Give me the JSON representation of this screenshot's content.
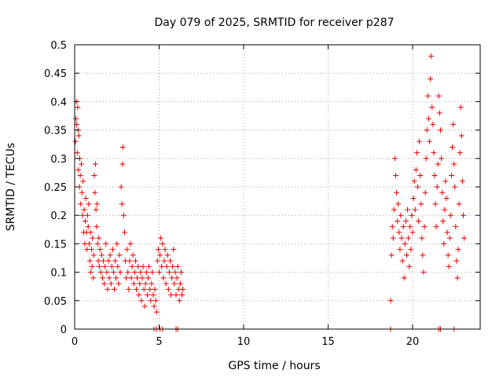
{
  "chart_data": {
    "type": "scatter",
    "title": "Day 079 of 2025, SRMTID for receiver p287",
    "xlabel": "GPS time / hours",
    "ylabel": "SRMTID / TECUs",
    "xlim": [
      0,
      24
    ],
    "ylim": [
      0,
      0.5
    ],
    "xticks": [
      0,
      5,
      10,
      15,
      20
    ],
    "xtick_labels": [
      "0",
      "5",
      "10",
      "15",
      "20"
    ],
    "yticks": [
      0,
      0.05,
      0.1,
      0.15,
      0.2,
      0.25,
      0.3,
      0.35,
      0.4,
      0.45,
      0.5
    ],
    "ytick_labels": [
      "0",
      "0.05",
      "0.1",
      "0.15",
      "0.2",
      "0.25",
      "0.3",
      "0.35",
      "0.4",
      "0.45",
      "0.5"
    ],
    "grid": true,
    "marker": "+",
    "color": "#e60000",
    "series": [
      {
        "name": "SRMTID",
        "points": [
          [
            0.05,
            0.33
          ],
          [
            0.08,
            0.37
          ],
          [
            0.1,
            0.4
          ],
          [
            0.12,
            0.36
          ],
          [
            0.15,
            0.31
          ],
          [
            0.18,
            0.39
          ],
          [
            0.2,
            0.35
          ],
          [
            0.22,
            0.28
          ],
          [
            0.25,
            0.34
          ],
          [
            0.28,
            0.25
          ],
          [
            0.3,
            0.3
          ],
          [
            0.33,
            0.27
          ],
          [
            0.36,
            0.22
          ],
          [
            0.4,
            0.29
          ],
          [
            0.43,
            0.24
          ],
          [
            0.46,
            0.2
          ],
          [
            0.5,
            0.26
          ],
          [
            0.53,
            0.17
          ],
          [
            0.56,
            0.21
          ],
          [
            0.6,
            0.15
          ],
          [
            0.63,
            0.19
          ],
          [
            0.66,
            0.23
          ],
          [
            0.7,
            0.17
          ],
          [
            0.73,
            0.14
          ],
          [
            0.76,
            0.2
          ],
          [
            0.8,
            0.18
          ],
          [
            0.83,
            0.22
          ],
          [
            0.86,
            0.15
          ],
          [
            0.9,
            0.12
          ],
          [
            0.93,
            0.17
          ],
          [
            0.96,
            0.1
          ],
          [
            1.0,
            0.14
          ],
          [
            1.03,
            0.11
          ],
          [
            1.06,
            0.16
          ],
          [
            1.1,
            0.09
          ],
          [
            1.13,
            0.13
          ],
          [
            1.16,
            0.27
          ],
          [
            1.2,
            0.24
          ],
          [
            1.23,
            0.29
          ],
          [
            1.26,
            0.21
          ],
          [
            1.3,
            0.18
          ],
          [
            1.33,
            0.22
          ],
          [
            1.36,
            0.15
          ],
          [
            1.4,
            0.12
          ],
          [
            1.43,
            0.16
          ],
          [
            1.46,
            0.11
          ],
          [
            1.5,
            0.14
          ],
          [
            1.55,
            0.1
          ],
          [
            1.6,
            0.13
          ],
          [
            1.65,
            0.09
          ],
          [
            1.7,
            0.12
          ],
          [
            1.75,
            0.08
          ],
          [
            1.8,
            0.11
          ],
          [
            1.85,
            0.15
          ],
          [
            1.9,
            0.1
          ],
          [
            1.95,
            0.07
          ],
          [
            2.0,
            0.12
          ],
          [
            2.05,
            0.09
          ],
          [
            2.1,
            0.13
          ],
          [
            2.15,
            0.08
          ],
          [
            2.2,
            0.11
          ],
          [
            2.25,
            0.14
          ],
          [
            2.3,
            0.1
          ],
          [
            2.35,
            0.07
          ],
          [
            2.4,
            0.12
          ],
          [
            2.45,
            0.09
          ],
          [
            2.5,
            0.15
          ],
          [
            2.55,
            0.11
          ],
          [
            2.6,
            0.08
          ],
          [
            2.65,
            0.13
          ],
          [
            2.7,
            0.1
          ],
          [
            2.75,
            0.25
          ],
          [
            2.8,
            0.22
          ],
          [
            2.83,
            0.29
          ],
          [
            2.85,
            0.32
          ],
          [
            2.9,
            0.2
          ],
          [
            2.95,
            0.17
          ],
          [
            3.0,
            0.12
          ],
          [
            3.05,
            0.09
          ],
          [
            3.1,
            0.14
          ],
          [
            3.15,
            0.1
          ],
          [
            3.2,
            0.07
          ],
          [
            3.25,
            0.12
          ],
          [
            3.3,
            0.15
          ],
          [
            3.35,
            0.09
          ],
          [
            3.4,
            0.11
          ],
          [
            3.45,
            0.13
          ],
          [
            3.5,
            0.08
          ],
          [
            3.55,
            0.1
          ],
          [
            3.6,
            0.12
          ],
          [
            3.65,
            0.07
          ],
          [
            3.7,
            0.09
          ],
          [
            3.75,
            0.11
          ],
          [
            3.8,
            0.06
          ],
          [
            3.85,
            0.08
          ],
          [
            3.9,
            0.1
          ],
          [
            3.95,
            0.05
          ],
          [
            4.0,
            0.09
          ],
          [
            4.05,
            0.11
          ],
          [
            4.1,
            0.07
          ],
          [
            4.15,
            0.04
          ],
          [
            4.2,
            0.08
          ],
          [
            4.25,
            0.1
          ],
          [
            4.3,
            0.06
          ],
          [
            4.35,
            0.09
          ],
          [
            4.4,
            0.11
          ],
          [
            4.45,
            0.07
          ],
          [
            4.5,
            0.05
          ],
          [
            4.55,
            0.08
          ],
          [
            4.6,
            0.1
          ],
          [
            4.65,
            0.06
          ],
          [
            4.7,
            0.04
          ],
          [
            4.75,
            0.07
          ],
          [
            4.8,
            0.05
          ],
          [
            4.85,
            0.03
          ],
          [
            4.9,
            0.12
          ],
          [
            4.95,
            0.14
          ],
          [
            5.0,
            0.1
          ],
          [
            5.05,
            0.13
          ],
          [
            5.1,
            0.16
          ],
          [
            5.15,
            0.11
          ],
          [
            5.2,
            0.15
          ],
          [
            5.25,
            0.09
          ],
          [
            5.3,
            0.12
          ],
          [
            5.35,
            0.14
          ],
          [
            5.4,
            0.08
          ],
          [
            5.45,
            0.11
          ],
          [
            5.5,
            0.13
          ],
          [
            5.55,
            0.07
          ],
          [
            5.6,
            0.1
          ],
          [
            5.65,
            0.12
          ],
          [
            5.7,
            0.06
          ],
          [
            5.75,
            0.09
          ],
          [
            5.8,
            0.11
          ],
          [
            5.85,
            0.14
          ],
          [
            5.9,
            0.08
          ],
          [
            5.95,
            0.1
          ],
          [
            6.0,
            0.06
          ],
          [
            6.05,
            0.09
          ],
          [
            6.1,
            0.11
          ],
          [
            6.15,
            0.07
          ],
          [
            6.2,
            0.05
          ],
          [
            6.25,
            0.08
          ],
          [
            6.3,
            0.1
          ],
          [
            6.35,
            0.06
          ],
          [
            6.4,
            0.07
          ],
          [
            4.7,
            0.0
          ],
          [
            4.85,
            0.0
          ],
          [
            5.05,
            0.0
          ],
          [
            5.2,
            0.0
          ],
          [
            6.0,
            0.0
          ],
          [
            6.1,
            0.0
          ],
          [
            18.7,
            0.05
          ],
          [
            18.75,
            0.13
          ],
          [
            18.8,
            0.18
          ],
          [
            18.85,
            0.16
          ],
          [
            18.9,
            0.21
          ],
          [
            18.95,
            0.3
          ],
          [
            19.0,
            0.27
          ],
          [
            19.05,
            0.24
          ],
          [
            19.1,
            0.19
          ],
          [
            19.15,
            0.22
          ],
          [
            19.2,
            0.17
          ],
          [
            19.25,
            0.14
          ],
          [
            19.3,
            0.2
          ],
          [
            19.35,
            0.16
          ],
          [
            19.4,
            0.12
          ],
          [
            19.45,
            0.18
          ],
          [
            19.5,
            0.09
          ],
          [
            19.55,
            0.15
          ],
          [
            19.6,
            0.19
          ],
          [
            19.65,
            0.13
          ],
          [
            19.7,
            0.21
          ],
          [
            19.75,
            0.16
          ],
          [
            19.8,
            0.11
          ],
          [
            19.85,
            0.18
          ],
          [
            19.9,
            0.14
          ],
          [
            19.95,
            0.2
          ],
          [
            20.0,
            0.17
          ],
          [
            20.05,
            0.23
          ],
          [
            20.1,
            0.26
          ],
          [
            20.15,
            0.21
          ],
          [
            20.2,
            0.28
          ],
          [
            20.25,
            0.31
          ],
          [
            20.3,
            0.25
          ],
          [
            20.35,
            0.19
          ],
          [
            20.4,
            0.33
          ],
          [
            20.45,
            0.27
          ],
          [
            20.5,
            0.22
          ],
          [
            20.55,
            0.16
          ],
          [
            20.6,
            0.13
          ],
          [
            20.65,
            0.1
          ],
          [
            20.7,
            0.18
          ],
          [
            20.75,
            0.24
          ],
          [
            20.8,
            0.3
          ],
          [
            20.85,
            0.35
          ],
          [
            20.9,
            0.41
          ],
          [
            20.95,
            0.37
          ],
          [
            21.0,
            0.33
          ],
          [
            21.05,
            0.44
          ],
          [
            21.1,
            0.48
          ],
          [
            21.15,
            0.39
          ],
          [
            21.2,
            0.36
          ],
          [
            21.25,
            0.31
          ],
          [
            21.3,
            0.27
          ],
          [
            21.35,
            0.22
          ],
          [
            21.4,
            0.18
          ],
          [
            21.45,
            0.25
          ],
          [
            21.5,
            0.29
          ],
          [
            21.55,
            0.41
          ],
          [
            21.6,
            0.38
          ],
          [
            21.65,
            0.35
          ],
          [
            21.7,
            0.3
          ],
          [
            21.75,
            0.24
          ],
          [
            21.8,
            0.19
          ],
          [
            21.85,
            0.15
          ],
          [
            21.9,
            0.21
          ],
          [
            21.95,
            0.26
          ],
          [
            22.0,
            0.23
          ],
          [
            22.05,
            0.17
          ],
          [
            22.1,
            0.13
          ],
          [
            22.15,
            0.11
          ],
          [
            22.2,
            0.16
          ],
          [
            22.25,
            0.2
          ],
          [
            22.3,
            0.27
          ],
          [
            22.35,
            0.32
          ],
          [
            22.4,
            0.36
          ],
          [
            22.45,
            0.29
          ],
          [
            22.5,
            0.25
          ],
          [
            22.55,
            0.18
          ],
          [
            22.6,
            0.12
          ],
          [
            22.65,
            0.09
          ],
          [
            22.7,
            0.14
          ],
          [
            22.75,
            0.22
          ],
          [
            22.8,
            0.31
          ],
          [
            22.85,
            0.39
          ],
          [
            22.9,
            0.34
          ],
          [
            22.95,
            0.26
          ],
          [
            23.0,
            0.2
          ],
          [
            23.05,
            0.16
          ],
          [
            18.7,
            0.0
          ],
          [
            21.55,
            0.0
          ],
          [
            21.65,
            0.0
          ],
          [
            22.45,
            0.0
          ]
        ]
      }
    ]
  }
}
